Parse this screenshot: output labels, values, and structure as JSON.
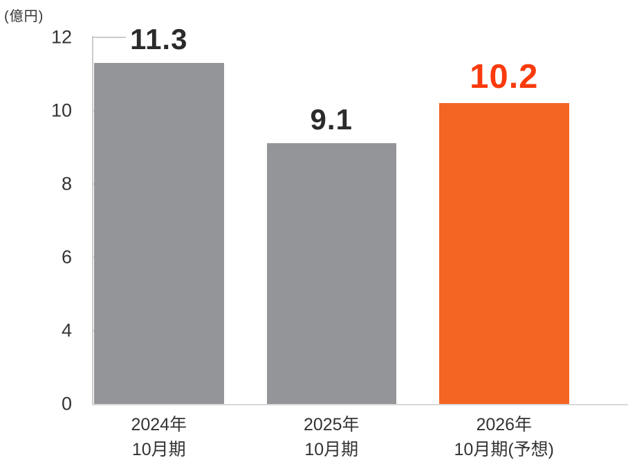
{
  "unit_label": "(億円)",
  "colors": {
    "background": "#FFFFFF",
    "bar_default": "#939598",
    "bar_highlight": "#F26522",
    "value_label_default": "#2B2B2B",
    "value_label_highlight": "#FA3A0D",
    "axis_line": "#CBCBCB",
    "baseline": "#D8D8D8",
    "tick_text": "#333333",
    "category_text": "#333333"
  },
  "chart_data": {
    "type": "bar",
    "title": "",
    "xlabel": "",
    "ylabel": "(億円)",
    "categories": [
      [
        "2024年",
        "10月期"
      ],
      [
        "2025年",
        "10月期"
      ],
      [
        "2026年",
        "10月期(予想)"
      ]
    ],
    "values": [
      11.3,
      9.1,
      10.2
    ],
    "value_labels": [
      "11.3",
      "9.1",
      "10.2"
    ],
    "highlight_index": 2,
    "ylim": [
      0,
      12
    ],
    "ytick_values": [
      12,
      10,
      8,
      6,
      4,
      0
    ],
    "ytick_labels": [
      "12",
      "10",
      "8",
      "6",
      "4",
      "0"
    ],
    "grid": false,
    "legend_position": "none"
  }
}
